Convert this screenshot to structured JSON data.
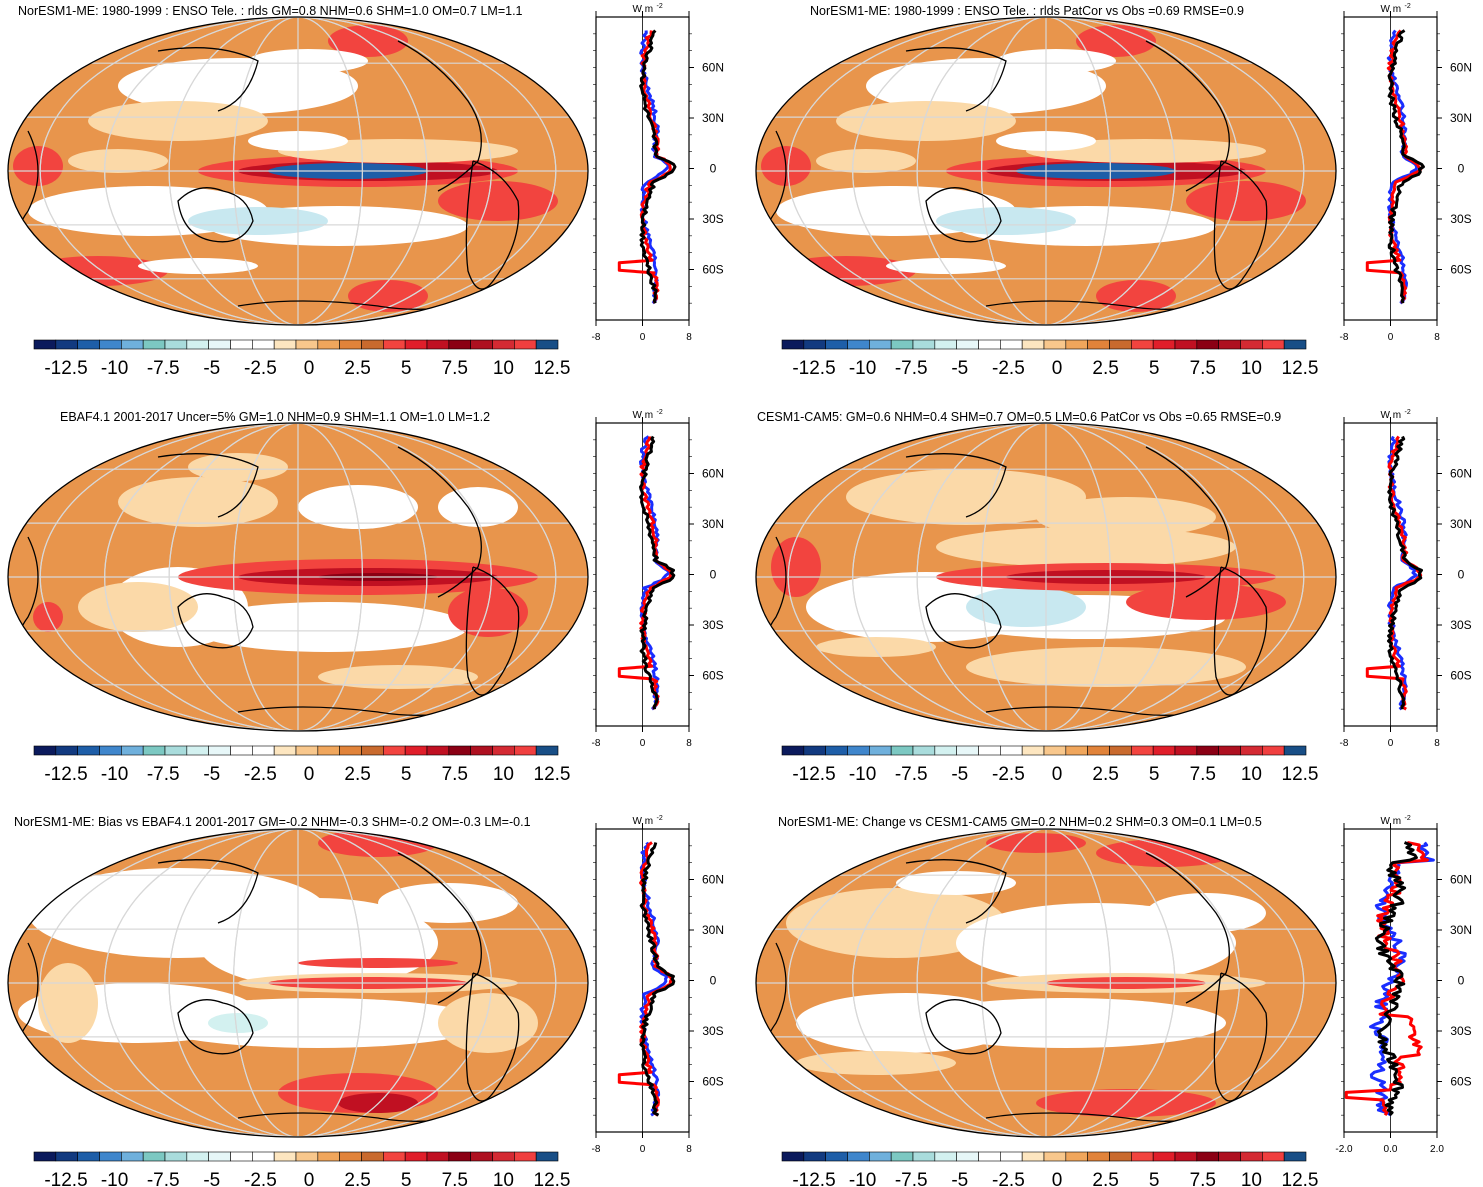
{
  "colors": {
    "palette": [
      "#0b1a5c",
      "#123a80",
      "#1e5ea8",
      "#3f86cc",
      "#6fb0dc",
      "#7cc8c2",
      "#a9dcdc",
      "#d3f1f0",
      "#e7f7f8",
      "#ffffff",
      "#ffffff",
      "#fde6c0",
      "#f8c78c",
      "#f0a65c",
      "#e1833a",
      "#c96a2e",
      "#f2443f",
      "#e01e2a",
      "#c01022",
      "#8b0014",
      "#ae1020",
      "#d42a33",
      "#f03f3f",
      "#184e86"
    ],
    "base_orange": "#e8954c",
    "line_red": "#ff0000",
    "line_blue": "#1a2eff",
    "line_black": "#000000"
  },
  "panels": [
    {
      "title": "NorESM1-ME: 1980-1999 : ENSO Tele. : rlds GM=0.8 NHM=0.6 SHM=1.0 OM=0.7 LM=1.1",
      "variant": "model"
    },
    {
      "title": "NorESM1-ME: 1980-1999 : ENSO Tele. : rlds PatCor vs Obs =0.69 RMSE=0.9",
      "variant": "model"
    },
    {
      "title": "EBAF4.1 2001-2017 Uncer=5% GM=1.0 NHM=0.9 SHM=1.1 OM=1.0 LM=1.2",
      "variant": "obs"
    },
    {
      "title": "CESM1-CAM5: GM=0.6 NHM=0.4 SHM=0.7 OM=0.5 LM=0.6 PatCor vs Obs =0.65 RMSE=0.9",
      "variant": "cesm"
    },
    {
      "title": "NorESM1-ME: Bias vs EBAF4.1 2001-2017 GM=-0.2 NHM=-0.3 SHM=-0.2 OM=-0.3 LM=-0.1",
      "variant": "bias"
    },
    {
      "title": "NorESM1-ME: Change vs CESM1-CAM5 GM=0.2 NHM=0.2 SHM=0.3 OM=0.1 LM=0.5",
      "variant": "change"
    }
  ],
  "colorbar": {
    "labels": [
      "-12.5",
      "-10",
      "-7.5",
      "-5",
      "-2.5",
      "0",
      "2.5",
      "5",
      "7.5",
      "10",
      "12.5"
    ]
  },
  "zonal_axis": {
    "units_main": "W m",
    "units_sup": "-2",
    "lat_labels": [
      "60N",
      "30N",
      "0",
      "30S",
      "60S"
    ],
    "x_ticks_default": [
      "-8",
      "0",
      "8"
    ],
    "x_ticks_change": [
      "-2.0",
      "0.0",
      "2.0"
    ]
  },
  "chart_data": {
    "type": "heatmap",
    "description_free": true,
    "colorbar_range": [
      -12.5,
      12.5
    ],
    "colorbar_step": 2.5,
    "zonal_mean_series": [
      "red",
      "blue",
      "black"
    ],
    "zonal_xlim_default": [
      -8,
      8
    ],
    "zonal_xlim_change": [
      -2.0,
      2.0
    ],
    "lat_ticks": [
      60,
      30,
      0,
      -30,
      -60
    ]
  }
}
